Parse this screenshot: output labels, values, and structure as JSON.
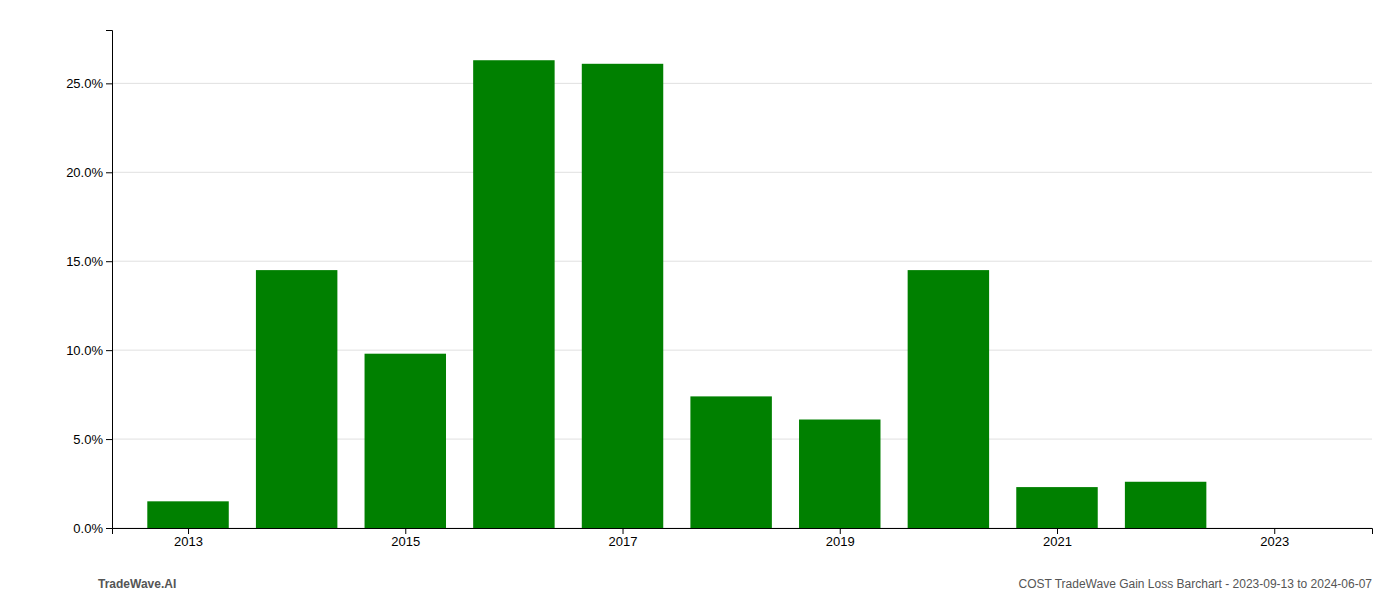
{
  "chart_data": {
    "type": "bar",
    "x": [
      2013,
      2014,
      2015,
      2016,
      2017,
      2018,
      2019,
      2020,
      2021,
      2022,
      2023
    ],
    "values": [
      1.5,
      14.5,
      9.8,
      26.3,
      26.1,
      7.4,
      6.1,
      14.5,
      2.3,
      2.6,
      0.0
    ],
    "color": "#008000",
    "xlim": [
      2012.3,
      2023.9
    ],
    "xticks": [
      2013,
      2015,
      2017,
      2019,
      2021,
      2023
    ],
    "ylim": [
      0,
      28
    ],
    "yticks": [
      {
        "value": 0.0,
        "label": "0.0%"
      },
      {
        "value": 5.0,
        "label": "5.0%"
      },
      {
        "value": 10.0,
        "label": "10.0%"
      },
      {
        "value": 15.0,
        "label": "15.0%"
      },
      {
        "value": 20.0,
        "label": "20.0%"
      },
      {
        "value": 25.0,
        "label": "25.0%"
      }
    ],
    "grid": true,
    "annotations": [
      "TradeWave.AI",
      "COST TradeWave Gain Loss Barchart - 2023-09-13 to 2024-06-07"
    ]
  }
}
